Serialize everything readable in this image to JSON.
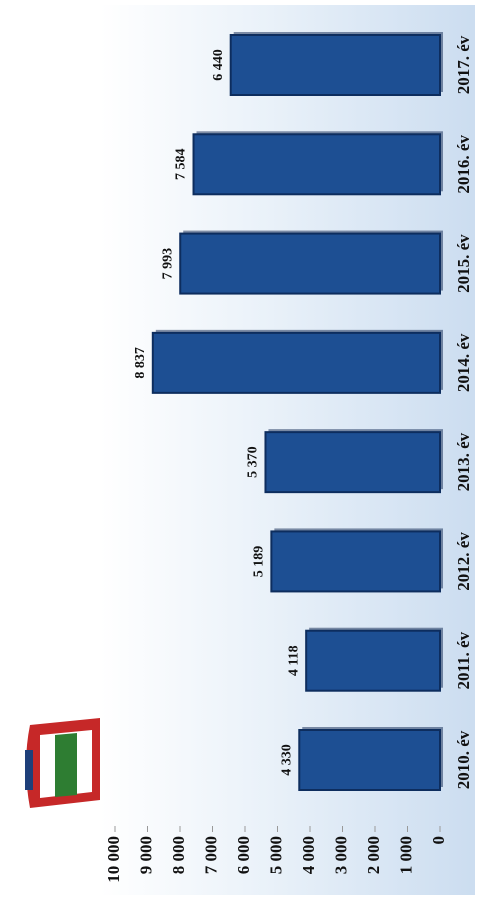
{
  "chart_data": {
    "type": "bar",
    "categories": [
      "2010. év",
      "2011. év",
      "2012. év",
      "2013. év",
      "2014. év",
      "2015. év",
      "2016. év",
      "2017. év"
    ],
    "values": [
      4330,
      4118,
      5189,
      5370,
      8837,
      7993,
      7584,
      6440
    ],
    "value_labels": [
      "4 330",
      "4 118",
      "5 189",
      "5 370",
      "8 837",
      "7 993",
      "7 584",
      "6 440"
    ],
    "color": "#1d4f93",
    "ylim": [
      0,
      10000
    ],
    "yticks": [
      0,
      {
        "value": 1000,
        "label": "1 000"
      },
      {
        "value": 2000,
        "label": "2 000"
      },
      {
        "value": 3000,
        "label": "3 000"
      },
      {
        "value": 4000,
        "label": "4 000"
      },
      {
        "value": 5000,
        "label": "5 000"
      },
      {
        "value": 6000,
        "label": "6 000"
      },
      {
        "value": 7000,
        "label": "7 000"
      },
      {
        "value": 8000,
        "label": "8 000"
      },
      {
        "value": 9000,
        "label": "9 000"
      },
      {
        "value": 10000,
        "label": "10 000"
      }
    ]
  }
}
